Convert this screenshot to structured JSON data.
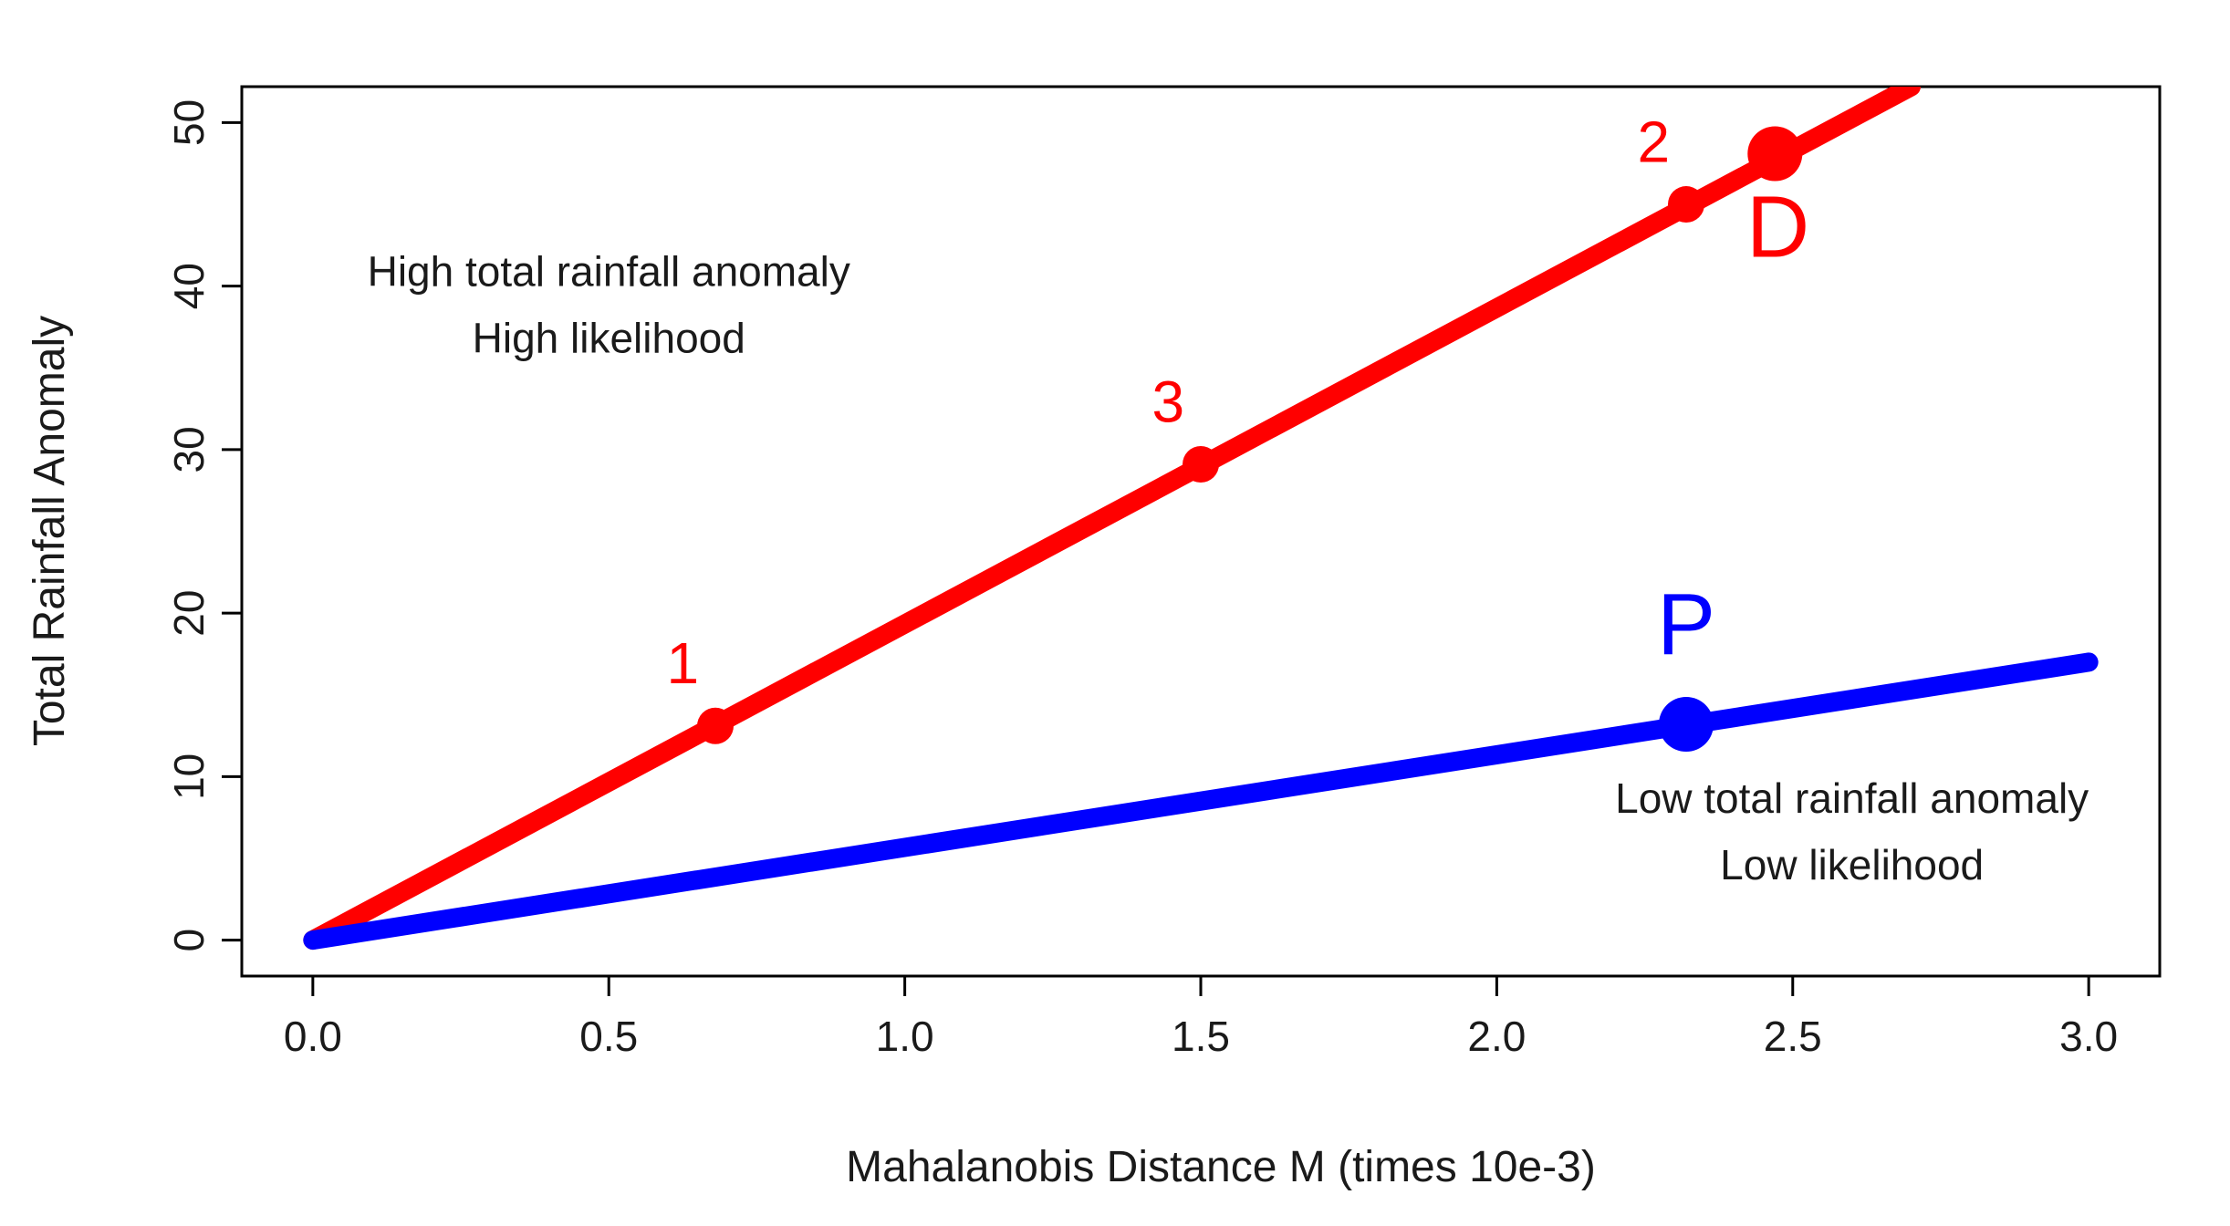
{
  "chart_data": {
    "type": "line",
    "title": "",
    "xlabel": "Mahalanobis Distance M (times 10e-3)",
    "ylabel": "Total Rainfall Anomaly",
    "xlim": [
      -0.12,
      3.12
    ],
    "ylim": [
      -2.2,
      52.2
    ],
    "x_ticks": [
      0.0,
      0.5,
      1.0,
      1.5,
      2.0,
      2.5,
      3.0
    ],
    "x_tick_labels": [
      "0.0",
      "0.5",
      "1.0",
      "1.5",
      "2.0",
      "2.5",
      "3.0"
    ],
    "y_ticks": [
      0,
      10,
      20,
      30,
      40,
      50
    ],
    "y_tick_labels": [
      "0",
      "10",
      "20",
      "30",
      "40",
      "50"
    ],
    "grid": false,
    "series": [
      {
        "name": "high",
        "color": "#ff0000",
        "x": [
          0.0,
          2.7
        ],
        "y": [
          0.0,
          52.2
        ]
      },
      {
        "name": "low",
        "color": "#0000ff",
        "x": [
          0.0,
          3.0
        ],
        "y": [
          0.0,
          17.0
        ]
      }
    ],
    "points": [
      {
        "series": "high",
        "x": 0.68,
        "y": 13.1,
        "label": "1",
        "size": "small",
        "color": "#ff0000",
        "label_dx": -0.055,
        "label_dy": 2.6
      },
      {
        "series": "high",
        "x": 1.5,
        "y": 29.1,
        "label": "3",
        "size": "small",
        "color": "#ff0000",
        "label_dx": -0.055,
        "label_dy": 2.6
      },
      {
        "series": "high",
        "x": 2.32,
        "y": 45.0,
        "label": "2",
        "size": "small",
        "color": "#ff0000",
        "label_dx": -0.055,
        "label_dy": 2.6
      },
      {
        "series": "high",
        "x": 2.47,
        "y": 48.1,
        "label": "D",
        "size": "large",
        "color": "#ff0000",
        "label_dx": 0.005,
        "label_dy": -6.3
      },
      {
        "series": "low",
        "x": 2.32,
        "y": 13.2,
        "label": "P",
        "size": "large",
        "color": "#0000ff",
        "label_dx": 0.0,
        "label_dy": 4.3
      }
    ],
    "annotations": [
      {
        "lines": [
          "High total rainfall anomaly",
          "High likelihood"
        ],
        "x": 0.5,
        "y": 40.0,
        "color": "#1a1a1a"
      },
      {
        "lines": [
          "Low total rainfall anomaly",
          "Low likelihood"
        ],
        "x": 2.6,
        "y": 7.8,
        "color": "#1a1a1a"
      }
    ]
  }
}
